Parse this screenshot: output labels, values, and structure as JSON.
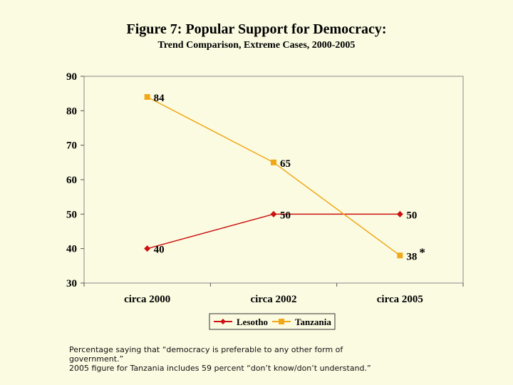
{
  "chart_data": {
    "type": "line",
    "title": "Figure 7:  Popular Support for Democracy:",
    "subtitle": "Trend Comparison, Extreme Cases, 2000-2005",
    "categories": [
      "circa 2000",
      "circa 2002",
      "circa 2005"
    ],
    "ylim": [
      30,
      90
    ],
    "yticks": [
      30,
      40,
      50,
      60,
      70,
      80,
      90
    ],
    "grid": false,
    "legend_position": "bottom",
    "series": [
      {
        "name": "Lesotho",
        "values": [
          40,
          50,
          50
        ],
        "labels": [
          "40",
          "50",
          "50"
        ],
        "color": "#cc1111",
        "marker": "diamond"
      },
      {
        "name": "Tanzania",
        "values": [
          84,
          65,
          38
        ],
        "labels": [
          "84",
          "65",
          "38"
        ],
        "color": "#f0a818",
        "marker": "square"
      }
    ],
    "annotation": "*"
  },
  "colors": {
    "background": "#fbfbe2",
    "plot_border": "#888888"
  },
  "footnotes": [
    "Percentage saying that  “democracy is preferable to any other form of government.”",
    "2005 figure for Tanzania includes 59 percent “don’t know/don’t understand.”"
  ]
}
